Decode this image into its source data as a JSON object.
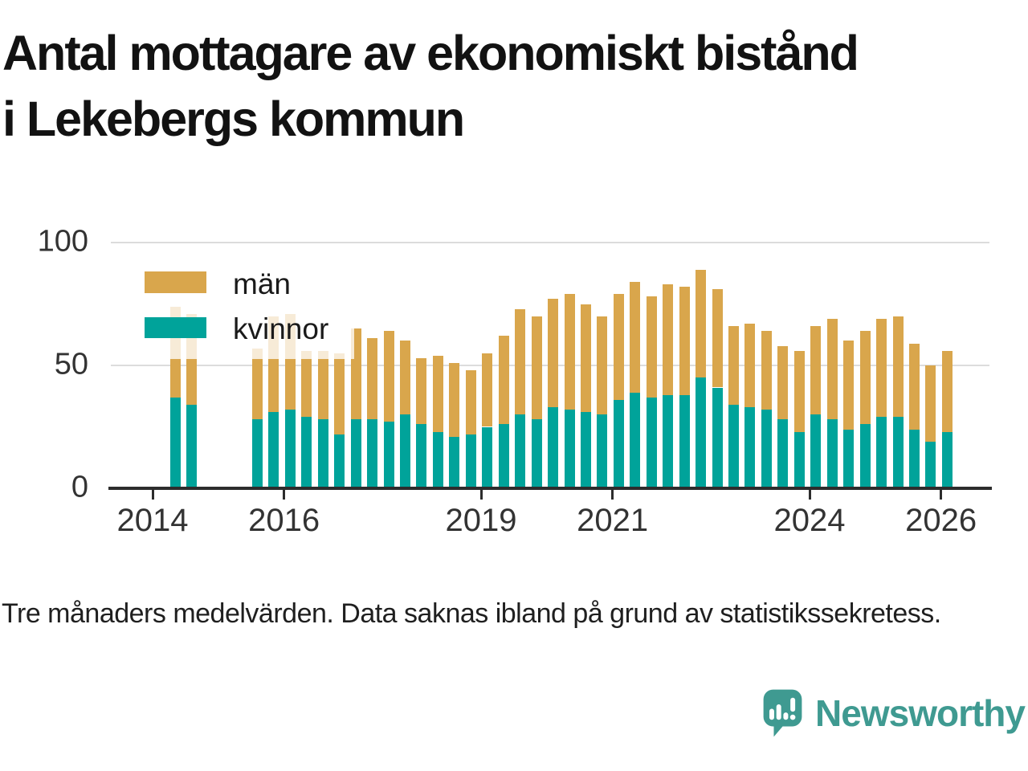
{
  "title": {
    "line1": "Antal mottagare av ekonomiskt bistånd",
    "line2": "i Lekebergs kommun"
  },
  "legend": {
    "items": [
      {
        "label": "män",
        "color": "#D9A64C"
      },
      {
        "label": "kvinnor",
        "color": "#00A39A"
      }
    ]
  },
  "axes": {
    "y_ticks": [
      "100",
      "50",
      "0"
    ],
    "x_ticks": [
      "2014",
      "2016",
      "2019",
      "2021",
      "2024",
      "2026"
    ]
  },
  "footer": "Tre månaders medelvärden. Data saknas ibland på grund av statistikssekretess.",
  "brand": "Newsworthy",
  "colors": {
    "men_bar": "#D9A64C",
    "women_bar": "#00A39A",
    "axis": "#2d2d2d",
    "gridline": "#dcdcdc",
    "brand_teal": "#3F9A91"
  },
  "chart_data": {
    "type": "bar",
    "stacked": true,
    "title": "Antal mottagare av ekonomiskt bistånd i Lekebergs kommun",
    "ylabel": "",
    "xlabel": "",
    "ylim": [
      0,
      100
    ],
    "y_gridlines": [
      50,
      100
    ],
    "x_tick_years": [
      2014,
      2016,
      2019,
      2021,
      2024,
      2026
    ],
    "legend_position": "top-left-inside",
    "series_names": [
      "män",
      "kvinnor"
    ],
    "missing_periods": [
      "2014-Q4",
      "2015-Q1",
      "2015-Q2"
    ],
    "points": [
      {
        "period": "2014-Q2",
        "kvinnor": 37,
        "man": 37
      },
      {
        "period": "2014-Q3",
        "kvinnor": 34,
        "man": 37
      },
      {
        "period": "2015-Q3",
        "kvinnor": 28,
        "man": 29
      },
      {
        "period": "2015-Q4",
        "kvinnor": 31,
        "man": 39
      },
      {
        "period": "2016-Q1",
        "kvinnor": 32,
        "man": 39
      },
      {
        "period": "2016-Q2",
        "kvinnor": 29,
        "man": 27
      },
      {
        "period": "2016-Q3",
        "kvinnor": 28,
        "man": 28
      },
      {
        "period": "2016-Q4",
        "kvinnor": 22,
        "man": 33
      },
      {
        "period": "2017-Q1",
        "kvinnor": 28,
        "man": 37
      },
      {
        "period": "2017-Q2",
        "kvinnor": 28,
        "man": 33
      },
      {
        "period": "2017-Q3",
        "kvinnor": 27,
        "man": 37
      },
      {
        "period": "2017-Q4",
        "kvinnor": 30,
        "man": 30
      },
      {
        "period": "2018-Q1",
        "kvinnor": 26,
        "man": 27
      },
      {
        "period": "2018-Q2",
        "kvinnor": 23,
        "man": 31
      },
      {
        "period": "2018-Q3",
        "kvinnor": 21,
        "man": 30
      },
      {
        "period": "2018-Q4",
        "kvinnor": 22,
        "man": 26
      },
      {
        "period": "2019-Q1",
        "kvinnor": 25,
        "man": 30
      },
      {
        "period": "2019-Q2",
        "kvinnor": 26,
        "man": 36
      },
      {
        "period": "2019-Q3",
        "kvinnor": 30,
        "man": 43
      },
      {
        "period": "2019-Q4",
        "kvinnor": 28,
        "man": 42
      },
      {
        "period": "2020-Q1",
        "kvinnor": 33,
        "man": 44
      },
      {
        "period": "2020-Q2",
        "kvinnor": 32,
        "man": 47
      },
      {
        "period": "2020-Q3",
        "kvinnor": 31,
        "man": 44
      },
      {
        "period": "2020-Q4",
        "kvinnor": 30,
        "man": 40
      },
      {
        "period": "2021-Q1",
        "kvinnor": 36,
        "man": 43
      },
      {
        "period": "2021-Q2",
        "kvinnor": 39,
        "man": 45
      },
      {
        "period": "2021-Q3",
        "kvinnor": 37,
        "man": 41
      },
      {
        "period": "2021-Q4",
        "kvinnor": 38,
        "man": 45
      },
      {
        "period": "2022-Q1",
        "kvinnor": 38,
        "man": 44
      },
      {
        "period": "2022-Q2",
        "kvinnor": 45,
        "man": 44
      },
      {
        "period": "2022-Q3",
        "kvinnor": 41,
        "man": 40
      },
      {
        "period": "2022-Q4",
        "kvinnor": 34,
        "man": 32
      },
      {
        "period": "2023-Q1",
        "kvinnor": 33,
        "man": 34
      },
      {
        "period": "2023-Q2",
        "kvinnor": 32,
        "man": 32
      },
      {
        "period": "2023-Q3",
        "kvinnor": 28,
        "man": 30
      },
      {
        "period": "2023-Q4",
        "kvinnor": 23,
        "man": 33
      },
      {
        "period": "2024-Q1",
        "kvinnor": 30,
        "man": 36
      },
      {
        "period": "2024-Q2",
        "kvinnor": 28,
        "man": 41
      },
      {
        "period": "2024-Q3",
        "kvinnor": 24,
        "man": 36
      },
      {
        "period": "2024-Q4",
        "kvinnor": 26,
        "man": 38
      },
      {
        "period": "2025-Q1",
        "kvinnor": 29,
        "man": 40
      },
      {
        "period": "2025-Q2",
        "kvinnor": 29,
        "man": 41
      },
      {
        "period": "2025-Q3",
        "kvinnor": 24,
        "man": 35
      },
      {
        "period": "2025-Q4",
        "kvinnor": 19,
        "man": 31
      },
      {
        "period": "2026-Q1",
        "kvinnor": 23,
        "man": 33
      }
    ]
  }
}
